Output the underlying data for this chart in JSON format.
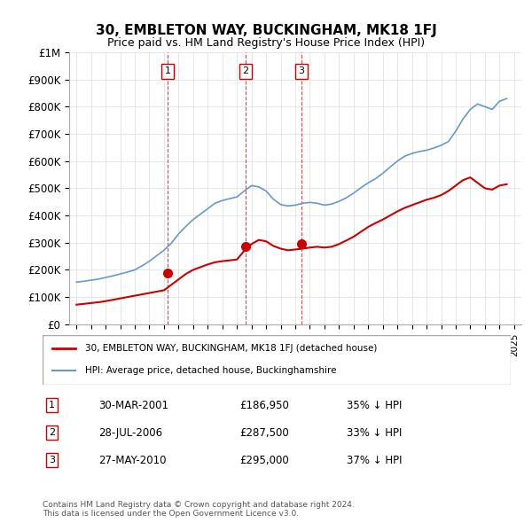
{
  "title": "30, EMBLETON WAY, BUCKINGHAM, MK18 1FJ",
  "subtitle": "Price paid vs. HM Land Registry's House Price Index (HPI)",
  "hpi_label": "HPI: Average price, detached house, Buckinghamshire",
  "price_label": "30, EMBLETON WAY, BUCKINGHAM, MK18 1FJ (detached house)",
  "hpi_color": "#6699cc",
  "price_color": "#cc0000",
  "marker_color": "#cc0000",
  "dashed_color": "#cc0000",
  "ylim": [
    0,
    1000000
  ],
  "yticks": [
    0,
    100000,
    200000,
    300000,
    400000,
    500000,
    600000,
    700000,
    800000,
    900000,
    1000000
  ],
  "ytick_labels": [
    "£0",
    "£100K",
    "£200K",
    "£300K",
    "£400K",
    "£500K",
    "£600K",
    "£700K",
    "£800K",
    "£900K",
    "£1M"
  ],
  "footer": "Contains HM Land Registry data © Crown copyright and database right 2024.\nThis data is licensed under the Open Government Licence v3.0.",
  "transactions": [
    {
      "num": 1,
      "date": "30-MAR-2001",
      "price": 186950,
      "hpi_diff": "35% ↓ HPI",
      "year": 2001.25
    },
    {
      "num": 2,
      "date": "28-JUL-2006",
      "price": 287500,
      "hpi_diff": "33% ↓ HPI",
      "year": 2006.58
    },
    {
      "num": 3,
      "date": "27-MAY-2010",
      "price": 295000,
      "hpi_diff": "37% ↓ HPI",
      "year": 2010.42
    }
  ],
  "hpi_x": [
    1995,
    1995.5,
    1996,
    1996.5,
    1997,
    1997.5,
    1998,
    1998.5,
    1999,
    1999.5,
    2000,
    2000.5,
    2001,
    2001.5,
    2002,
    2002.5,
    2003,
    2003.5,
    2004,
    2004.5,
    2005,
    2005.5,
    2006,
    2006.5,
    2007,
    2007.5,
    2008,
    2008.5,
    2009,
    2009.5,
    2010,
    2010.5,
    2011,
    2011.5,
    2012,
    2012.5,
    2013,
    2013.5,
    2014,
    2014.5,
    2015,
    2015.5,
    2016,
    2016.5,
    2017,
    2017.5,
    2018,
    2018.5,
    2019,
    2019.5,
    2020,
    2020.5,
    2021,
    2021.5,
    2022,
    2022.5,
    2023,
    2023.5,
    2024,
    2024.5
  ],
  "hpi_y": [
    155000,
    158000,
    162000,
    166000,
    172000,
    178000,
    185000,
    192000,
    200000,
    215000,
    232000,
    252000,
    272000,
    298000,
    332000,
    360000,
    385000,
    405000,
    425000,
    445000,
    455000,
    462000,
    468000,
    490000,
    510000,
    505000,
    490000,
    460000,
    440000,
    435000,
    438000,
    445000,
    448000,
    445000,
    438000,
    442000,
    452000,
    465000,
    482000,
    502000,
    520000,
    535000,
    555000,
    578000,
    600000,
    618000,
    628000,
    635000,
    640000,
    648000,
    658000,
    672000,
    710000,
    755000,
    790000,
    810000,
    800000,
    790000,
    820000,
    830000
  ],
  "price_x": [
    1995,
    1995.5,
    1996,
    1996.5,
    1997,
    1997.5,
    1998,
    1998.5,
    1999,
    1999.5,
    2000,
    2000.5,
    2001,
    2001.5,
    2002,
    2002.5,
    2003,
    2003.5,
    2004,
    2004.5,
    2005,
    2005.5,
    2006,
    2006.5,
    2007,
    2007.5,
    2008,
    2008.5,
    2009,
    2009.5,
    2010,
    2010.5,
    2011,
    2011.5,
    2012,
    2012.5,
    2013,
    2013.5,
    2014,
    2014.5,
    2015,
    2015.5,
    2016,
    2016.5,
    2017,
    2017.5,
    2018,
    2018.5,
    2019,
    2019.5,
    2020,
    2020.5,
    2021,
    2021.5,
    2022,
    2022.5,
    2023,
    2023.5,
    2024,
    2024.5
  ],
  "price_y": [
    72000,
    75000,
    78000,
    81000,
    85000,
    90000,
    95000,
    100000,
    105000,
    110000,
    115000,
    120000,
    125000,
    145000,
    165000,
    185000,
    200000,
    210000,
    220000,
    228000,
    232000,
    235000,
    238000,
    270000,
    295000,
    310000,
    305000,
    288000,
    278000,
    272000,
    275000,
    278000,
    282000,
    285000,
    282000,
    285000,
    295000,
    308000,
    322000,
    340000,
    358000,
    372000,
    385000,
    400000,
    415000,
    428000,
    438000,
    448000,
    458000,
    465000,
    475000,
    490000,
    510000,
    530000,
    540000,
    520000,
    500000,
    495000,
    510000,
    515000
  ],
  "xlim": [
    1994.5,
    2025.5
  ],
  "xticks": [
    1995,
    1996,
    1997,
    1998,
    1999,
    2000,
    2001,
    2002,
    2003,
    2004,
    2005,
    2006,
    2007,
    2008,
    2009,
    2010,
    2011,
    2012,
    2013,
    2014,
    2015,
    2016,
    2017,
    2018,
    2019,
    2020,
    2021,
    2022,
    2023,
    2024,
    2025
  ]
}
